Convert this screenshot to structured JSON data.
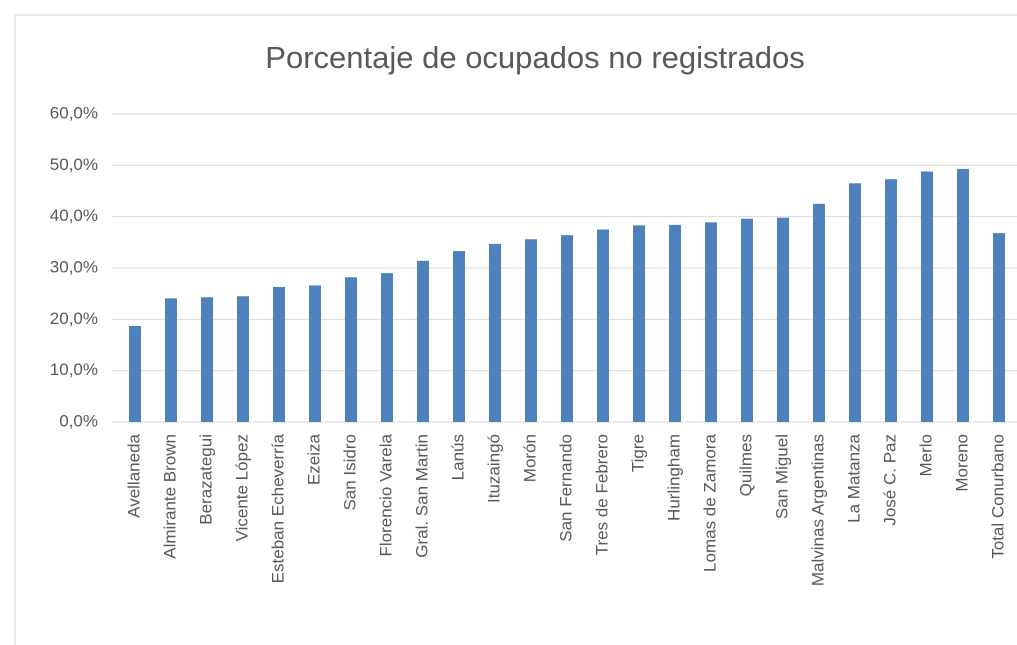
{
  "chart_data": {
    "type": "bar",
    "title": "Porcentaje de ocupados no registrados",
    "categories": [
      "Avellaneda",
      "Almirante Brown",
      "Berazategui",
      "Vicente López",
      "Esteban Echeverría",
      "Ezeiza",
      "San Isidro",
      "Florencio Varela",
      "Gral. San Martin",
      "Lanús",
      "Ituzaingó",
      "Morón",
      "San Fernando",
      "Tres de Febrero",
      "Tigre",
      "Hurlingham",
      "Lomas de Zamora",
      "Quilmes",
      "San Miguel",
      "Malvinas Argentinas",
      "La Matanza",
      "José C. Paz",
      "Merlo",
      "Moreno",
      "Total Conurbano"
    ],
    "values": [
      18.7,
      24.1,
      24.3,
      24.5,
      26.3,
      26.6,
      28.2,
      29.0,
      31.4,
      33.3,
      34.7,
      35.6,
      36.4,
      37.5,
      38.3,
      38.4,
      38.9,
      39.6,
      39.8,
      42.5,
      46.5,
      47.3,
      48.8,
      49.3,
      36.8
    ],
    "color": "#4f81bd",
    "ylim": [
      0,
      60
    ],
    "yticks": [
      {
        "value": 0,
        "label": "0,0%"
      },
      {
        "value": 10,
        "label": "10,0%"
      },
      {
        "value": 20,
        "label": "20,0%"
      },
      {
        "value": 30,
        "label": "30,0%"
      },
      {
        "value": 40,
        "label": "40,0%"
      },
      {
        "value": 50,
        "label": "50,0%"
      },
      {
        "value": 60,
        "label": "60,0%"
      }
    ],
    "grid": true
  }
}
